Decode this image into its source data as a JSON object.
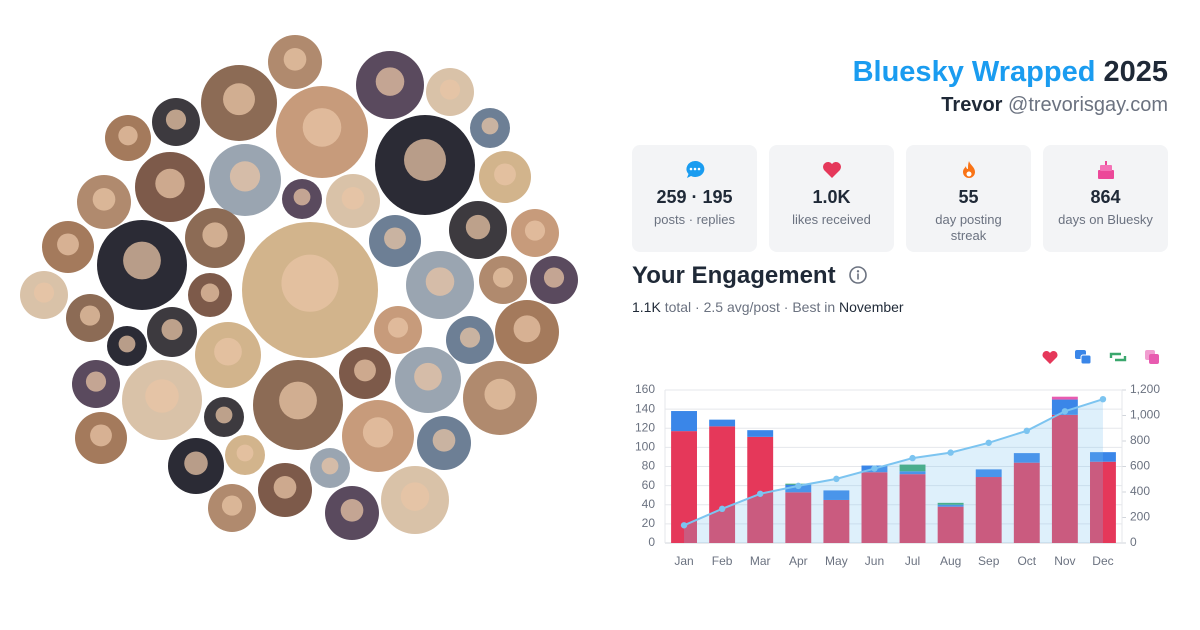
{
  "header": {
    "title": "Bluesky Wrapped",
    "year": "2025",
    "name": "Trevor",
    "handle": "@trevorisgay.com"
  },
  "stats": [
    {
      "value": "259 · 195",
      "label": "posts · replies"
    },
    {
      "value": "1.0K",
      "label": "likes received"
    },
    {
      "value": "55",
      "label": "day posting streak"
    },
    {
      "value": "864",
      "label": "days on Bluesky"
    }
  ],
  "engagement": {
    "title": "Your Engagement",
    "summary": [
      "1.1K",
      " total · 2.5 avg/post · Best in ",
      "November"
    ]
  },
  "chart_data": {
    "type": "bar",
    "categories": [
      "Jan",
      "Feb",
      "Mar",
      "Apr",
      "May",
      "Jun",
      "Jul",
      "Aug",
      "Sep",
      "Oct",
      "Nov",
      "Dec"
    ],
    "series": [
      {
        "color": "#e5385a",
        "values": [
          117,
          122,
          111,
          53,
          45,
          74,
          72,
          38,
          69,
          84,
          134,
          85
        ]
      },
      {
        "color": "#3a86e8",
        "values": [
          21,
          7,
          7,
          8,
          10,
          7,
          3,
          2,
          8,
          10,
          16,
          10
        ]
      },
      {
        "color": "#3aa76d",
        "values": [
          0,
          0,
          0,
          1,
          0,
          0,
          7,
          2,
          0,
          0,
          0,
          0
        ]
      },
      {
        "color": "#e85bb0",
        "values": [
          0,
          0,
          0,
          0,
          0,
          0,
          0,
          0,
          0,
          0,
          3,
          0
        ]
      },
      {
        "type": "line",
        "axis": "y2",
        "color": "#7cc4f0",
        "values": [
          139,
          268,
          386,
          448,
          503,
          584,
          666,
          709,
          786,
          880,
          1033,
          1128
        ]
      }
    ],
    "ylim": [
      0,
      160
    ],
    "yticks": [
      0,
      20,
      40,
      60,
      80,
      100,
      120,
      140,
      160
    ],
    "y2lim": [
      0,
      1200
    ],
    "y2ticks": [
      0,
      200,
      400,
      600,
      800,
      {
        "value": 1000,
        "label": "1,000"
      },
      {
        "value": 1200,
        "label": "1,200"
      }
    ],
    "grid": true
  }
}
